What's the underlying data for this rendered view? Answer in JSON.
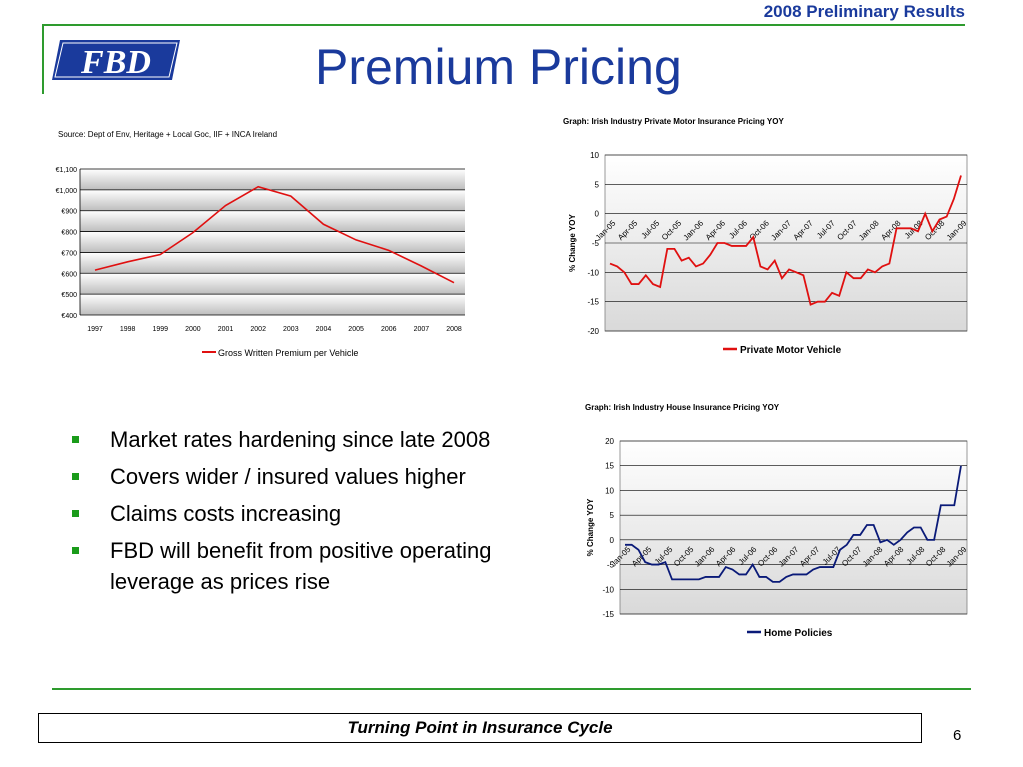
{
  "header": {
    "report_title": "2008 Preliminary Results",
    "logo_text": "FBD",
    "page_title": "Premium Pricing"
  },
  "bullets": [
    "Market rates hardening since late 2008",
    "Covers wider / insured values higher",
    "Claims costs increasing",
    "FBD will benefit from positive operating leverage as prices rise"
  ],
  "footer": {
    "banner": "Turning Point in Insurance Cycle",
    "page_number": "6"
  },
  "colors": {
    "brand_blue": "#1a3a9c",
    "rule_green": "#2e9b2e",
    "red_series": "#e01010",
    "navy_series": "#0a1a78"
  },
  "chart_data": [
    {
      "type": "line",
      "title": "",
      "source": "Source: Dept of Env, Heritage + Local Goc, IIF + INCA Ireland",
      "categories": [
        "1997",
        "1998",
        "1999",
        "2000",
        "2001",
        "2002",
        "2003",
        "2004",
        "2005",
        "2006",
        "2007",
        "2008"
      ],
      "series": [
        {
          "name": "Gross Written Premium per Vehicle",
          "values": [
            615,
            655,
            690,
            795,
            925,
            1015,
            970,
            835,
            760,
            710,
            635,
            555
          ]
        }
      ],
      "ylim": [
        400,
        1100
      ],
      "yticks": [
        "€400",
        "€500",
        "€600",
        "€700",
        "€800",
        "€900",
        "€1,000",
        "€1,100"
      ],
      "xlabel": "",
      "ylabel": "",
      "grid": true,
      "legend": "bottom"
    },
    {
      "type": "line",
      "title": "Graph: Irish Industry Private Motor Insurance Pricing YOY",
      "ylabel": "% Change YOY",
      "xtick_labels": [
        "Jan-05",
        "Apr-05",
        "Jul-05",
        "Oct-05",
        "Jan-06",
        "Apr-06",
        "Jul-06",
        "Oct-06",
        "Jan-07",
        "Apr-07",
        "Jul-07",
        "Oct-07",
        "Jan-08",
        "Apr-08",
        "Jul-08",
        "Oct-08",
        "Jan-09"
      ],
      "yticks": [
        10,
        5,
        0,
        -5,
        -10,
        -15,
        -20
      ],
      "ylim": [
        -20,
        10
      ],
      "series": [
        {
          "name": "Private Motor Vehicle",
          "values": [
            -8.5,
            -9,
            -10,
            -12,
            -12,
            -10.5,
            -12,
            -12.5,
            -6,
            -6,
            -8,
            -7.5,
            -9,
            -8.5,
            -7,
            -5,
            -5,
            -5.5,
            -5.5,
            -5.5,
            -4,
            -9,
            -9.5,
            -8,
            -11,
            -9.5,
            -10,
            -10.5,
            -15.5,
            -15,
            -15,
            -13.5,
            -14,
            -10,
            -11,
            -11,
            -9.5,
            -10,
            -9,
            -8.5,
            -2.5,
            -2.5,
            -2.5,
            -3,
            0,
            -3,
            -1,
            -0.5,
            2.5,
            6.5
          ]
        }
      ],
      "grid": true,
      "legend": "bottom"
    },
    {
      "type": "line",
      "title": "Graph: Irish Industry House Insurance Pricing YOY",
      "ylabel": "% Change YOY",
      "xtick_labels": [
        "Jan-05",
        "Apr-05",
        "Jul-05",
        "Oct-05",
        "Jan-06",
        "Apr-06",
        "Jul-06",
        "Oct-06",
        "Jan-07",
        "Apr-07",
        "Jul-07",
        "Oct-07",
        "Jan-08",
        "Apr-08",
        "Jul-08",
        "Oct-08",
        "Jan-09"
      ],
      "yticks": [
        20,
        15,
        10,
        5,
        0,
        -5,
        -10,
        -15
      ],
      "ylim": [
        -15,
        20
      ],
      "series": [
        {
          "name": "Home Policies",
          "values": [
            -1,
            -1,
            -2,
            -4.5,
            -5,
            -5,
            -4.5,
            -8,
            -8,
            -8,
            -8,
            -8,
            -7.5,
            -7.5,
            -7.5,
            -5.5,
            -6,
            -7,
            -7,
            -5,
            -7.5,
            -7.5,
            -8.5,
            -8.5,
            -7.5,
            -7,
            -7,
            -7,
            -6,
            -5.5,
            -5.5,
            -5.5,
            -2,
            -1,
            1,
            1,
            3,
            3,
            -0.5,
            0,
            -1,
            0,
            1.5,
            2.5,
            2.5,
            0,
            0,
            7,
            7,
            7,
            15
          ]
        }
      ],
      "grid": true,
      "legend": "bottom"
    }
  ]
}
